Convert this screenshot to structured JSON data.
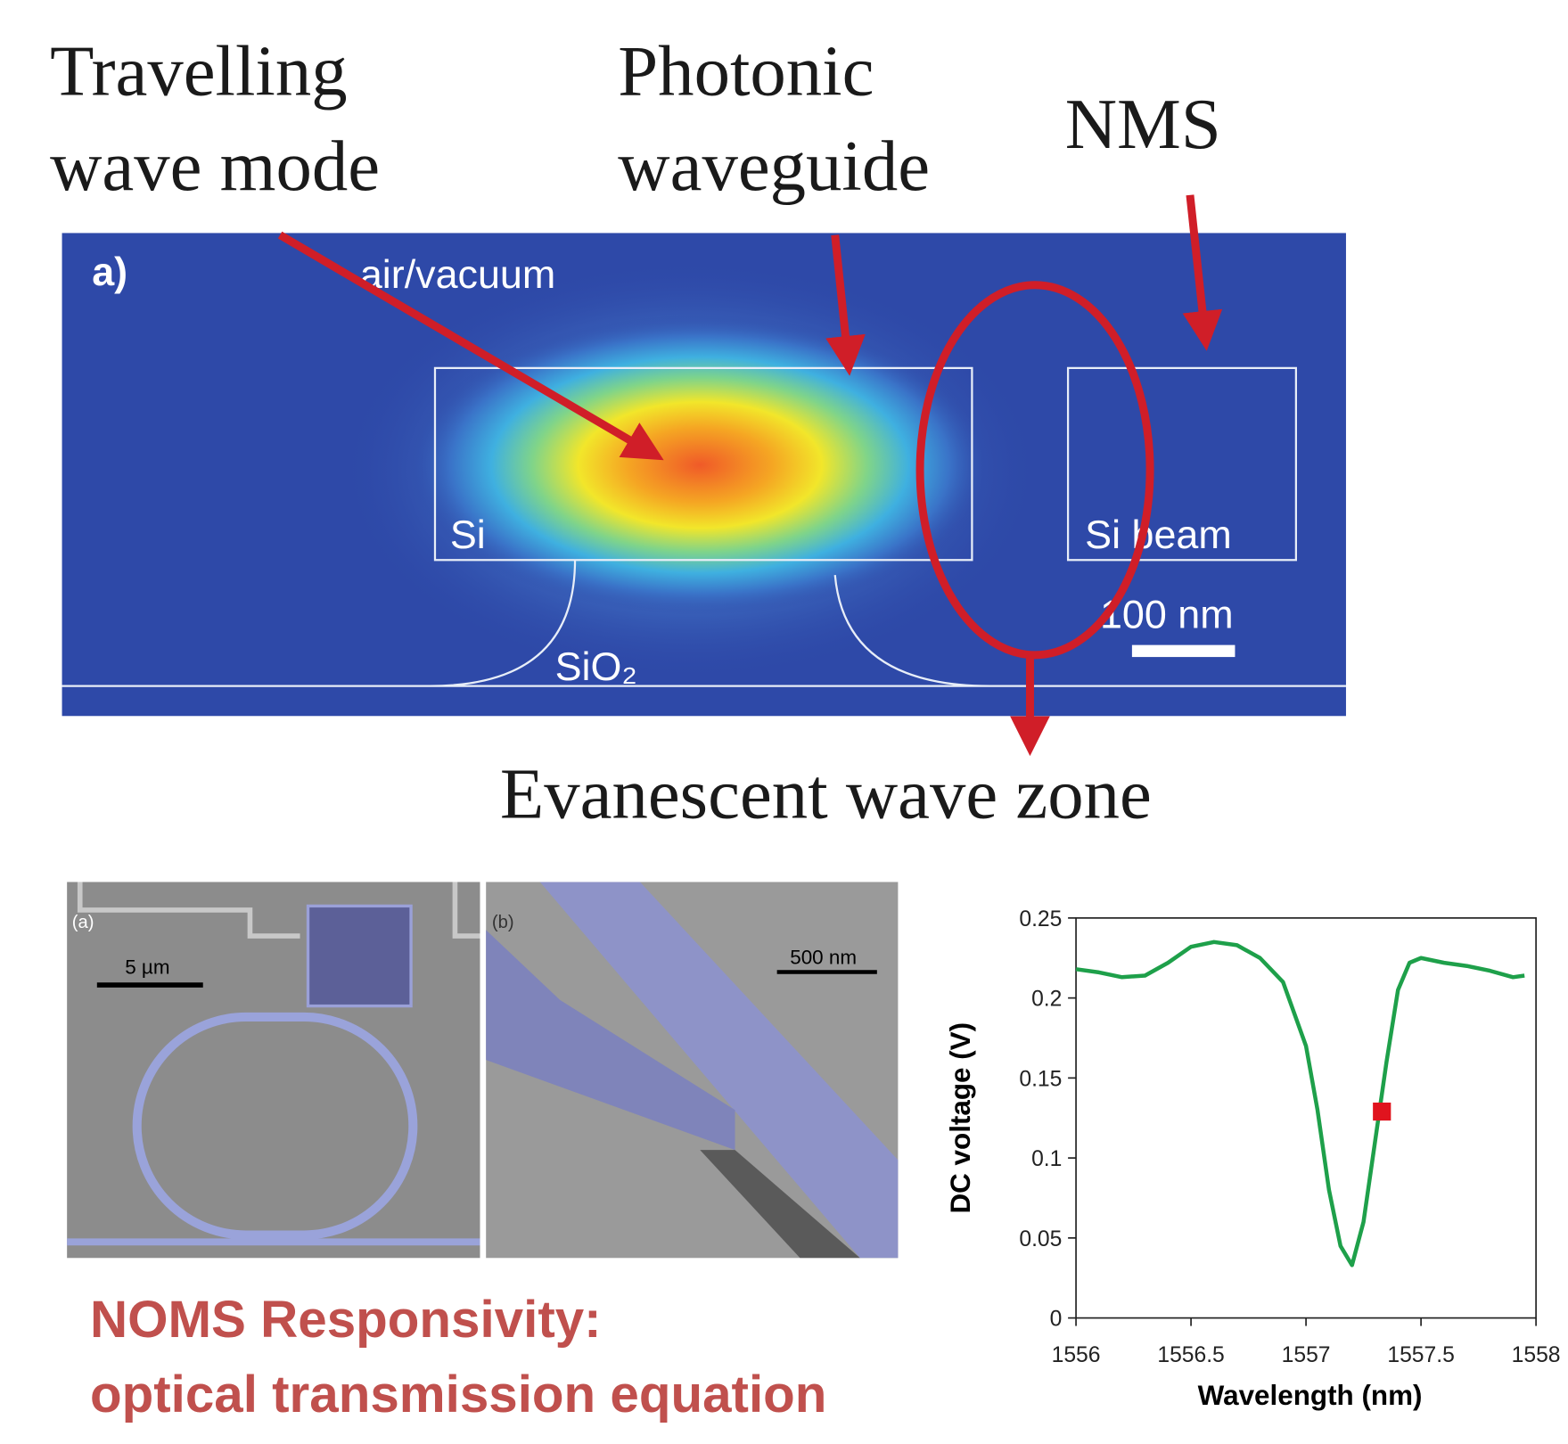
{
  "annotations": {
    "travelling": [
      "Travelling",
      "wave mode"
    ],
    "waveguide": [
      "Photonic",
      "waveguide"
    ],
    "nms": "NMS",
    "evanescent": "Evanescent wave zone"
  },
  "mode_figure": {
    "panel": "a)",
    "air": "air/vacuum",
    "si": "Si",
    "si_beam": "Si beam",
    "scale": "100 nm",
    "sio2": "SiO₂"
  },
  "sem_a": {
    "panel": "(a)",
    "scale": "5 µm"
  },
  "sem_b": {
    "panel": "(b)",
    "scale": "500 nm"
  },
  "caption": [
    "NOMS Responsivity:",
    "optical transmission equation"
  ],
  "chart_data": {
    "type": "line",
    "x_label": "Wavelength (nm)",
    "y_label": "DC voltage (V)",
    "x": [
      1556.0,
      1556.1,
      1556.2,
      1556.3,
      1556.4,
      1556.5,
      1556.6,
      1556.7,
      1556.8,
      1556.9,
      1557.0,
      1557.05,
      1557.1,
      1557.15,
      1557.2,
      1557.25,
      1557.3,
      1557.35,
      1557.4,
      1557.45,
      1557.5,
      1557.6,
      1557.7,
      1557.8,
      1557.9,
      1557.95
    ],
    "values": [
      0.218,
      0.216,
      0.213,
      0.214,
      0.222,
      0.232,
      0.235,
      0.233,
      0.225,
      0.21,
      0.17,
      0.13,
      0.08,
      0.045,
      0.033,
      0.06,
      0.11,
      0.16,
      0.205,
      0.222,
      0.225,
      0.222,
      0.22,
      0.217,
      0.213,
      0.214
    ],
    "color": "#1ea04a",
    "marker": {
      "x": 1557.33,
      "y": 0.129,
      "color": "#e0141e"
    },
    "xlim": [
      1556,
      1558
    ],
    "ylim": [
      0,
      0.25
    ],
    "xticks": [
      1556,
      1556.5,
      1557,
      1557.5,
      1558
    ],
    "yticks": [
      0,
      0.05,
      0.1,
      0.15,
      0.2,
      0.25
    ]
  }
}
